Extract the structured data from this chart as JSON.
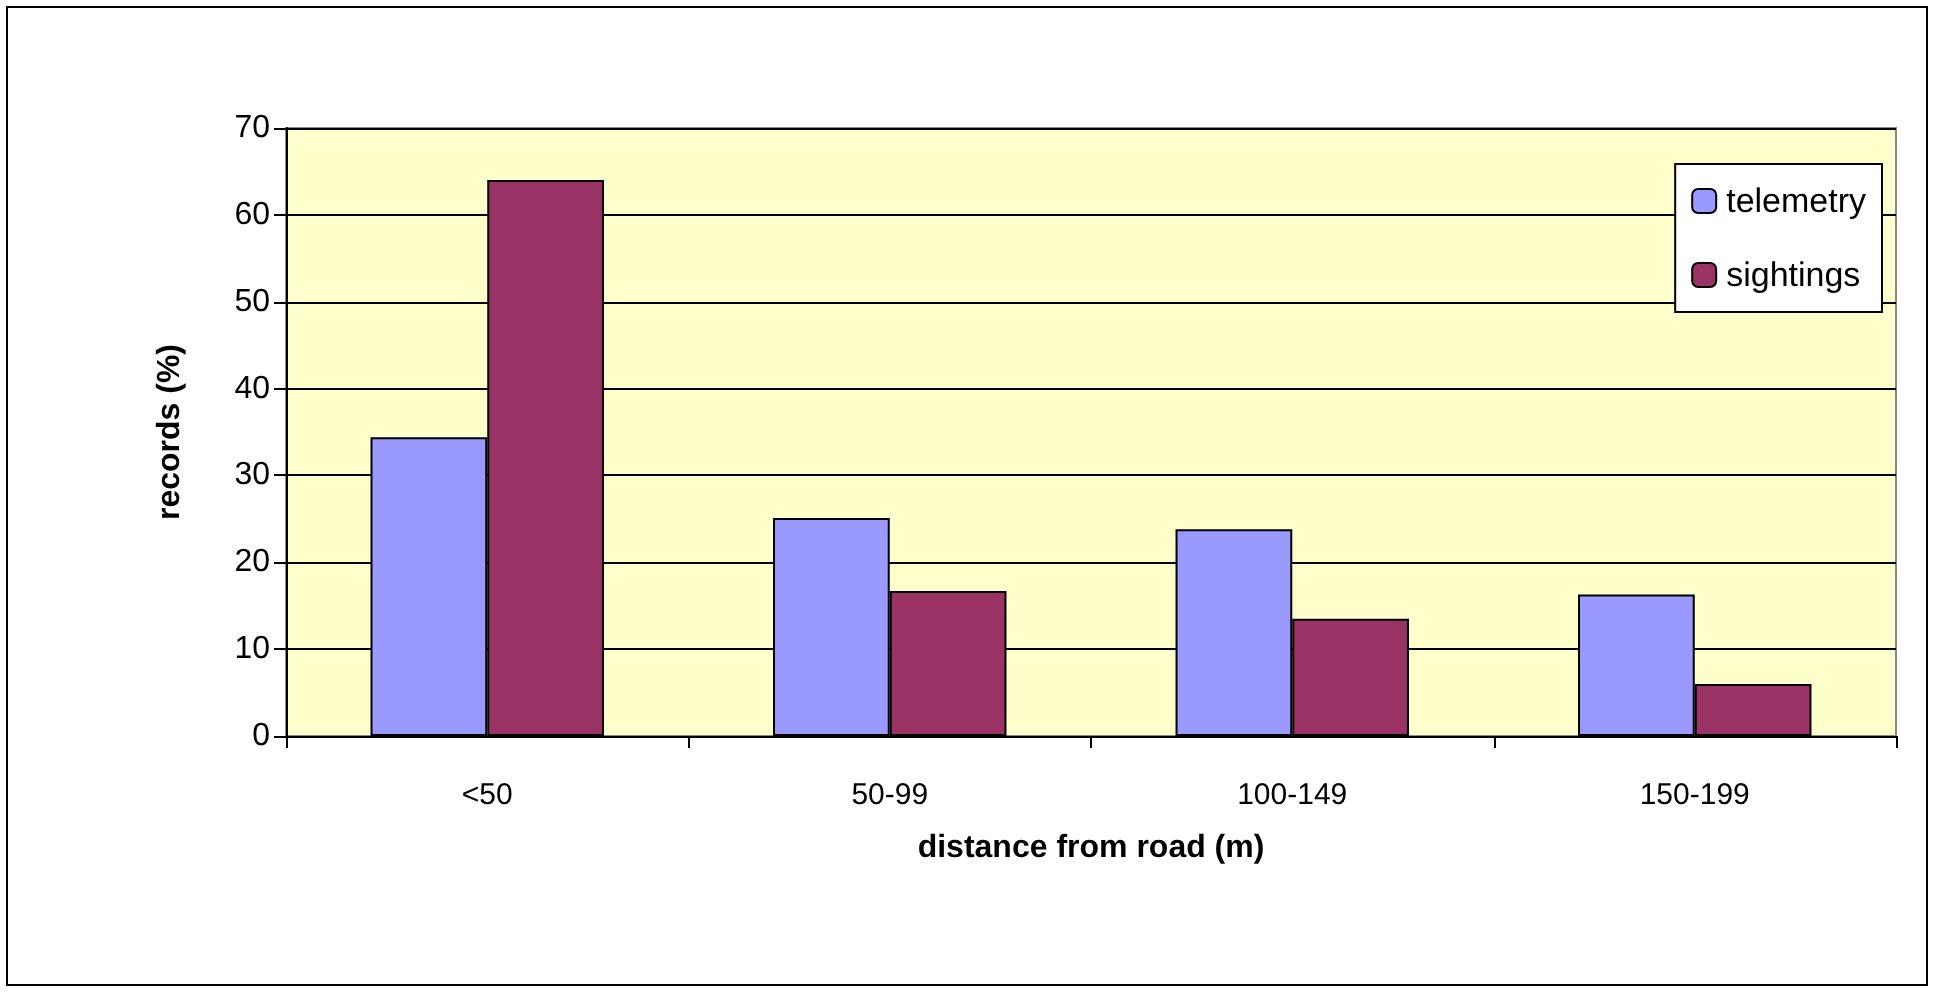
{
  "chart_data": {
    "type": "bar",
    "xlabel": "distance from road (m)",
    "ylabel": "records (%)",
    "categories": [
      "<50",
      "50-99",
      "100-149",
      "150-199"
    ],
    "series": [
      {
        "name": "telemetry",
        "color": "#9999ff",
        "values": [
          34.4,
          25.1,
          23.8,
          16.3
        ]
      },
      {
        "name": "sightings",
        "color": "#993366",
        "values": [
          64,
          16.7,
          13.5,
          6
        ]
      }
    ],
    "ylim": [
      0,
      70
    ],
    "yticks": [
      0,
      10,
      20,
      30,
      40,
      50,
      60,
      70
    ],
    "grid": "y",
    "legend": "top right"
  }
}
